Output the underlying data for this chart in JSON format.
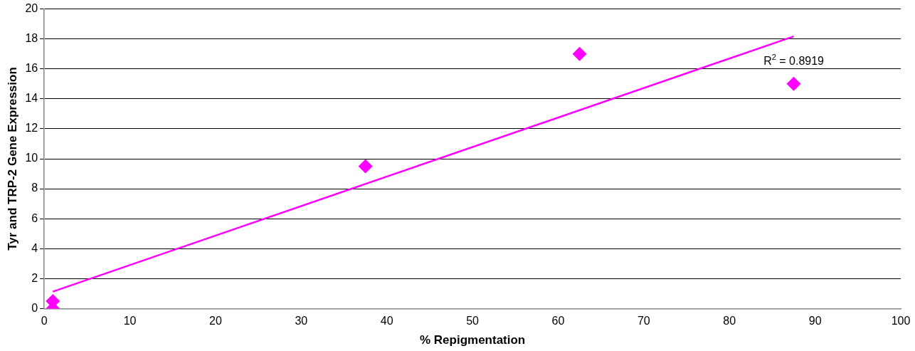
{
  "chart_data": {
    "type": "scatter",
    "xlabel": "% Repigmentation",
    "ylabel": "Tyr and TRP-2 Gene Expression",
    "xlim": [
      0,
      100
    ],
    "xticks": [
      0,
      10,
      20,
      30,
      40,
      50,
      60,
      70,
      80,
      90,
      100
    ],
    "ylim": [
      0,
      20
    ],
    "yticks": [
      0,
      2,
      4,
      6,
      8,
      10,
      12,
      14,
      16,
      18,
      20
    ],
    "grid": "y",
    "legend": false,
    "marker": "diamond",
    "series": [
      {
        "color": "#ff00ff",
        "x": [
          1,
          1,
          37.5,
          62.5,
          87.5
        ],
        "values": [
          0.5,
          0,
          9.5,
          17,
          15
        ]
      },
      {
        "type": "line",
        "color": "#ff00ff",
        "marker": "none",
        "x": [
          1,
          87.5
        ],
        "values": [
          1.13,
          18.17
        ]
      }
    ],
    "annotations": [
      "R$^{2}$ = 0.8919"
    ]
  }
}
